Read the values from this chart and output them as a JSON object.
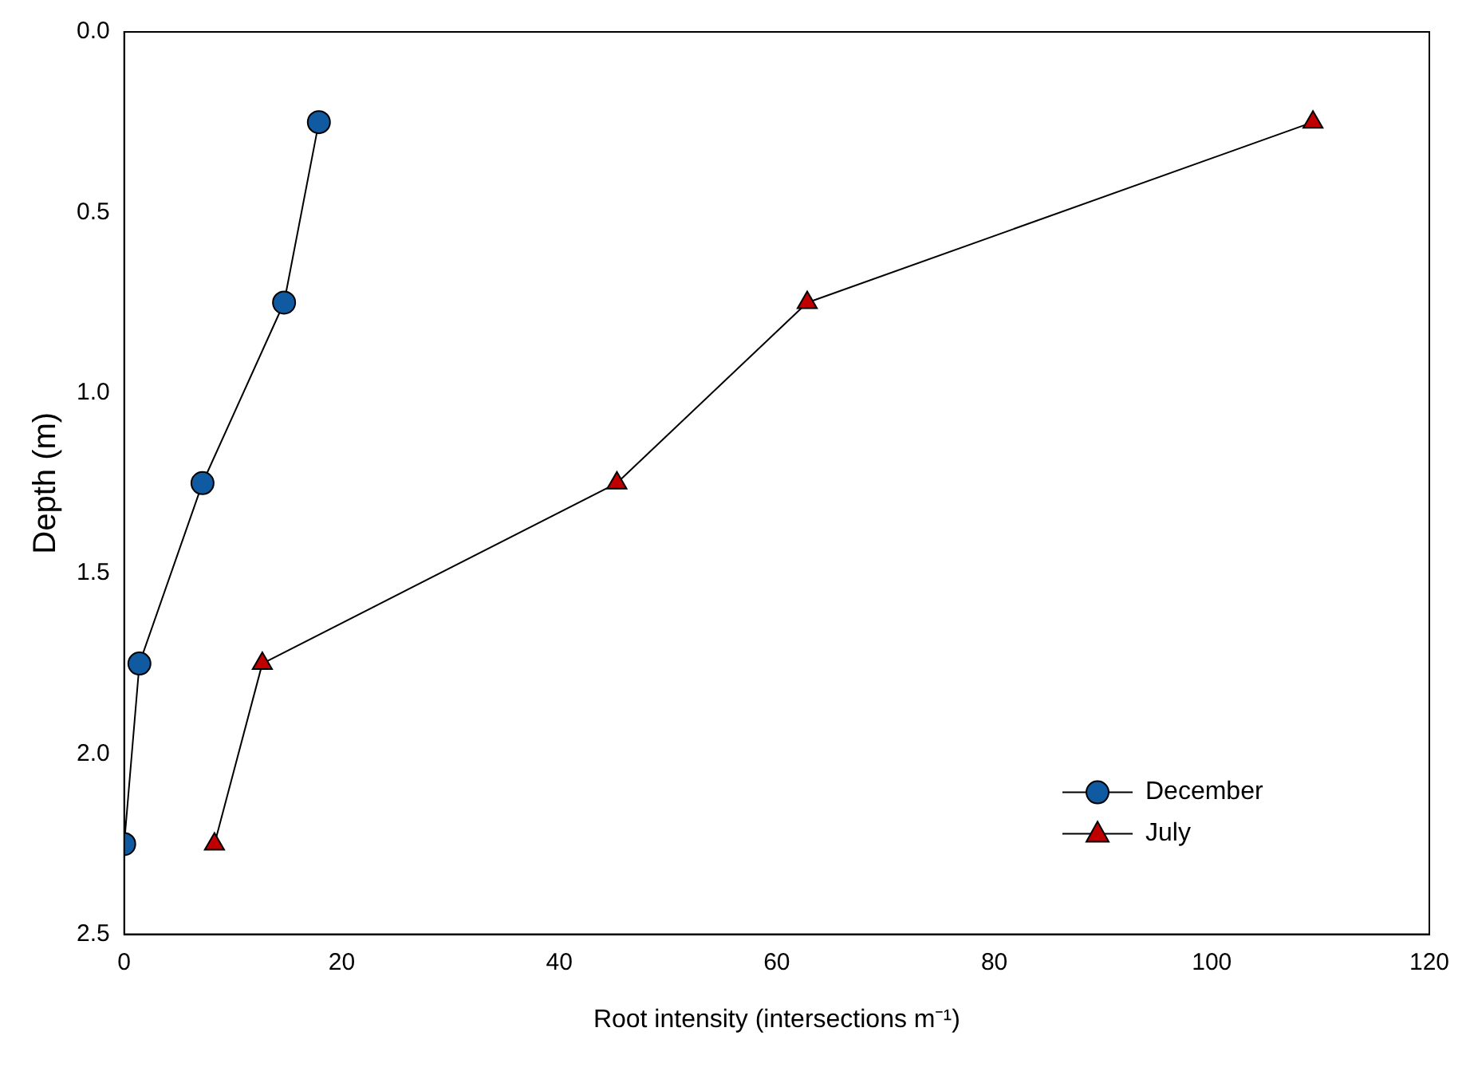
{
  "chart_data": {
    "type": "line",
    "xlabel": "Root intensity (intersections m⁻¹)",
    "ylabel": "Depth (m)",
    "xlim": [
      0,
      120
    ],
    "xticks": [
      0,
      20,
      40,
      60,
      80,
      100,
      120
    ],
    "ylim": [
      2.5,
      0
    ],
    "yticks": [
      {
        "value": 0,
        "label": "0.0"
      },
      {
        "value": 0.5,
        "label": "0.5"
      },
      {
        "value": 1,
        "label": "1.0"
      },
      {
        "value": 1.5,
        "label": "1.5"
      },
      {
        "value": 2,
        "label": "2.0"
      },
      {
        "value": 2.5,
        "label": "2.5"
      }
    ],
    "grid": false,
    "legend": "bottom right",
    "line_style": "solid",
    "series": [
      {
        "name": "December",
        "color": "#0f5aa0",
        "marker": "circle",
        "x": [
          17.9,
          14.7,
          7.2,
          1.4,
          0
        ],
        "values": [
          0.25,
          0.75,
          1.25,
          1.75,
          2.25
        ]
      },
      {
        "name": "July",
        "color": "#c00000",
        "marker": "triangle",
        "x": [
          109.3,
          62.8,
          45.3,
          12.7,
          8.3
        ],
        "values": [
          0.25,
          0.75,
          1.25,
          1.75,
          2.25
        ]
      }
    ]
  }
}
